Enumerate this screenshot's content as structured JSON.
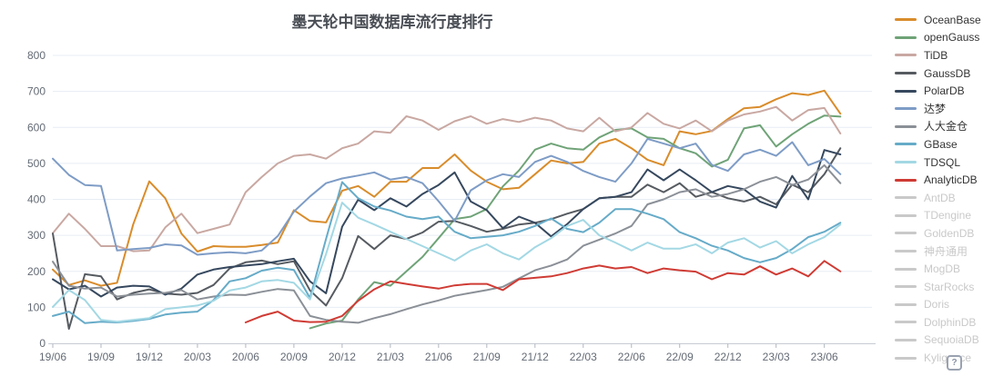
{
  "title": "墨天轮中国数据库流行度排行",
  "help_button": {
    "label": "?"
  },
  "colors": {
    "title": "#4a4e55",
    "grid": "#e7edf5",
    "axis_line": "#c7ccd4",
    "axis_tick": "#b0b6bf",
    "axis_text": "#646b75",
    "inactive_legend": "#c9c9c9",
    "background": "#ffffff"
  },
  "legend": {
    "position": "right",
    "items": [
      {
        "label": "OceanBase",
        "color": "#d98c2b",
        "active": true
      },
      {
        "label": "openGauss",
        "color": "#6fa377",
        "active": true
      },
      {
        "label": "TiDB",
        "color": "#c9a8a2",
        "active": true
      },
      {
        "label": "GaussDB",
        "color": "#565b61",
        "active": true
      },
      {
        "label": "PolarDB",
        "color": "#36485e",
        "active": true
      },
      {
        "label": "达梦",
        "color": "#7e9cc6",
        "active": true
      },
      {
        "label": "人大金仓",
        "color": "#8b9097",
        "active": true
      },
      {
        "label": "GBase",
        "color": "#66abc8",
        "active": true
      },
      {
        "label": "TDSQL",
        "color": "#a3d8e4",
        "active": true
      },
      {
        "label": "AnalyticDB",
        "color": "#cf3b34",
        "active": true
      },
      {
        "label": "AntDB",
        "color": "#c9c9c9",
        "active": false
      },
      {
        "label": "TDengine",
        "color": "#c9c9c9",
        "active": false
      },
      {
        "label": "GoldenDB",
        "color": "#c9c9c9",
        "active": false
      },
      {
        "label": "神舟通用",
        "color": "#c9c9c9",
        "active": false
      },
      {
        "label": "MogDB",
        "color": "#c9c9c9",
        "active": false
      },
      {
        "label": "StarRocks",
        "color": "#c9c9c9",
        "active": false
      },
      {
        "label": "Doris",
        "color": "#c9c9c9",
        "active": false
      },
      {
        "label": "DolphinDB",
        "color": "#c9c9c9",
        "active": false
      },
      {
        "label": "SequoiaDB",
        "color": "#c9c9c9",
        "active": false
      },
      {
        "label": "Kyligence",
        "color": "#c9c9c9",
        "active": false
      }
    ]
  },
  "chart_data": {
    "type": "line",
    "title": "墨天轮中国数据库流行度排行",
    "xlabel": "",
    "ylabel": "",
    "ylim": [
      0,
      800
    ],
    "y_ticks": [
      0,
      100,
      200,
      300,
      400,
      500,
      600,
      700,
      800
    ],
    "grid": true,
    "legend_position": "right",
    "x_start": "19/06",
    "x_end": "23/07",
    "x_interval": "monthly",
    "x_tick_labels": [
      "19/06",
      "19/09",
      "19/12",
      "20/03",
      "20/06",
      "20/09",
      "20/12",
      "21/03",
      "21/06",
      "21/09",
      "21/12",
      "22/03",
      "22/06",
      "22/09",
      "22/12",
      "23/03",
      "23/06"
    ],
    "x_ticks_every_n_months": 3,
    "n_points": 50,
    "series": [
      {
        "name": "OceanBase",
        "color": "#d98c2b",
        "values": [
          205,
          162,
          175,
          160,
          168,
          330,
          450,
          403,
          305,
          255,
          270,
          268,
          268,
          273,
          280,
          370,
          340,
          336,
          424,
          437,
          407,
          449,
          449,
          487,
          487,
          525,
          480,
          449,
          428,
          432,
          470,
          508,
          500,
          504,
          555,
          568,
          542,
          510,
          495,
          589,
          581,
          590,
          623,
          653,
          657,
          678,
          695,
          690,
          702,
          638
        ]
      },
      {
        "name": "openGauss",
        "color": "#6fa377",
        "values": [
          null,
          null,
          null,
          null,
          null,
          null,
          null,
          null,
          null,
          null,
          null,
          null,
          null,
          null,
          null,
          null,
          42,
          55,
          63,
          122,
          170,
          160,
          200,
          240,
          292,
          345,
          352,
          373,
          436,
          480,
          538,
          555,
          542,
          538,
          572,
          593,
          597,
          572,
          568,
          542,
          528,
          491,
          510,
          597,
          606,
          547,
          581,
          610,
          633,
          630
        ]
      },
      {
        "name": "TiDB",
        "color": "#c9a8a2",
        "values": [
          306,
          360,
          318,
          270,
          270,
          256,
          258,
          322,
          360,
          306,
          318,
          330,
          420,
          462,
          500,
          521,
          525,
          513,
          542,
          555,
          589,
          585,
          631,
          619,
          593,
          617,
          631,
          610,
          623,
          615,
          627,
          619,
          597,
          589,
          627,
          589,
          600,
          640,
          610,
          597,
          619,
          589,
          619,
          636,
          644,
          657,
          619,
          648,
          654,
          583
        ]
      },
      {
        "name": "GaussDB",
        "color": "#565b61",
        "values": [
          305,
          40,
          192,
          186,
          122,
          140,
          150,
          138,
          135,
          140,
          162,
          208,
          225,
          230,
          220,
          228,
          147,
          105,
          181,
          298,
          262,
          300,
          290,
          308,
          338,
          340,
          326,
          310,
          318,
          330,
          335,
          345,
          360,
          373,
          403,
          407,
          407,
          441,
          420,
          445,
          407,
          420,
          403,
          394,
          407,
          386,
          441,
          420,
          470,
          542
        ]
      },
      {
        "name": "PolarDB",
        "color": "#36485e",
        "values": [
          178,
          150,
          160,
          130,
          155,
          160,
          158,
          135,
          152,
          191,
          205,
          212,
          216,
          220,
          228,
          235,
          172,
          139,
          324,
          399,
          370,
          403,
          380,
          415,
          440,
          475,
          394,
          370,
          320,
          352,
          335,
          297,
          331,
          373,
          403,
          407,
          420,
          483,
          453,
          483,
          453,
          420,
          437,
          428,
          394,
          377,
          465,
          400,
          537,
          525
        ]
      },
      {
        "name": "达梦",
        "color": "#7e9cc6",
        "values": [
          513,
          468,
          440,
          437,
          258,
          262,
          265,
          275,
          272,
          246,
          250,
          253,
          250,
          258,
          298,
          366,
          408,
          445,
          458,
          466,
          475,
          455,
          462,
          445,
          395,
          340,
          425,
          453,
          470,
          462,
          504,
          521,
          504,
          479,
          462,
          449,
          500,
          568,
          555,
          542,
          555,
          496,
          479,
          525,
          538,
          521,
          559,
          495,
          512,
          470
        ]
      },
      {
        "name": "人大金仓",
        "color": "#8b9097",
        "values": [
          227,
          160,
          152,
          155,
          130,
          135,
          138,
          140,
          148,
          122,
          130,
          135,
          134,
          143,
          151,
          147,
          76,
          65,
          60,
          57,
          70,
          81,
          95,
          108,
          119,
          132,
          140,
          148,
          157,
          180,
          203,
          216,
          233,
          271,
          288,
          305,
          326,
          386,
          400,
          420,
          428,
          407,
          415,
          428,
          449,
          462,
          440,
          455,
          495,
          445
        ]
      },
      {
        "name": "GBase",
        "color": "#66abc8",
        "values": [
          76,
          88,
          56,
          60,
          58,
          62,
          68,
          80,
          85,
          88,
          120,
          172,
          181,
          202,
          210,
          204,
          126,
          290,
          448,
          403,
          380,
          369,
          352,
          345,
          352,
          310,
          292,
          296,
          300,
          310,
          326,
          347,
          318,
          309,
          335,
          373,
          373,
          360,
          345,
          309,
          292,
          271,
          258,
          237,
          225,
          237,
          262,
          295,
          310,
          335
        ]
      },
      {
        "name": "TDSQL",
        "color": "#a3d8e4",
        "values": [
          101,
          148,
          120,
          65,
          60,
          65,
          70,
          95,
          100,
          105,
          118,
          147,
          155,
          172,
          176,
          168,
          122,
          248,
          391,
          349,
          330,
          310,
          290,
          270,
          250,
          230,
          258,
          275,
          250,
          233,
          267,
          292,
          326,
          343,
          300,
          280,
          258,
          280,
          263,
          263,
          275,
          250,
          280,
          292,
          266,
          284,
          250,
          275,
          295,
          330
        ]
      },
      {
        "name": "AnalyticDB",
        "color": "#cf3b34",
        "values": [
          null,
          null,
          null,
          null,
          null,
          null,
          null,
          null,
          null,
          null,
          null,
          null,
          58,
          76,
          88,
          63,
          59,
          60,
          76,
          118,
          150,
          172,
          165,
          158,
          152,
          161,
          165,
          165,
          148,
          178,
          182,
          186,
          195,
          208,
          216,
          208,
          212,
          195,
          208,
          203,
          199,
          178,
          195,
          191,
          214,
          191,
          208,
          186,
          229,
          200
        ]
      }
    ],
    "inactive_series": [
      "AntDB",
      "TDengine",
      "GoldenDB",
      "神舟通用",
      "MogDB",
      "StarRocks",
      "Doris",
      "DolphinDB",
      "SequoiaDB",
      "Kyligence"
    ]
  }
}
